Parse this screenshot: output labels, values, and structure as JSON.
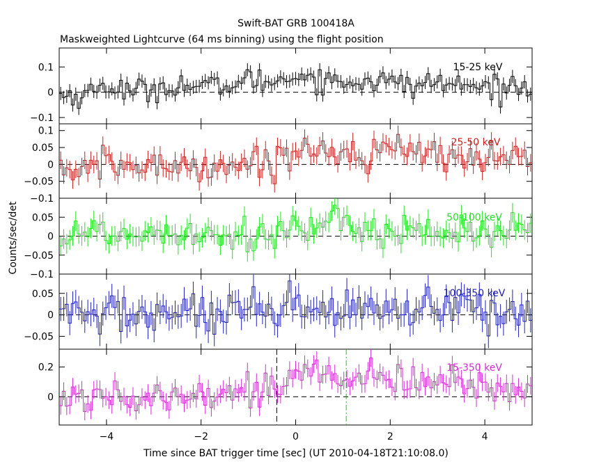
{
  "figure": {
    "title": "Swift-BAT GRB 100418A",
    "subtitle": "Maskweighted Lightcurve (64 ms binning) using the flight position",
    "xlabel": "Time since BAT trigger time [sec] (UT 2010-04-18T21:10:08.0)",
    "ylabel": "Counts/sec/det"
  },
  "chart_data": [
    {
      "type": "line",
      "band": "15-25 keV",
      "color": "#000000",
      "xlim": [
        -5,
        5
      ],
      "ylim": [
        -0.125,
        0.175
      ],
      "yticks": [
        -0.1,
        0,
        0.1
      ],
      "ytick_labels": [
        "−0.1",
        "0",
        "0.1"
      ],
      "baseline": 0,
      "error": 0.026,
      "anchors": [
        [
          -5,
          -0.01
        ],
        [
          -4.5,
          -0.015
        ],
        [
          -4,
          0.03
        ],
        [
          -3.5,
          0.0
        ],
        [
          -3,
          0.015
        ],
        [
          -2.5,
          0.03
        ],
        [
          -2,
          0.02
        ],
        [
          -1.5,
          0.025
        ],
        [
          -1,
          0.05
        ],
        [
          -0.5,
          0.04
        ],
        [
          0,
          0.07
        ],
        [
          0.5,
          0.055
        ],
        [
          1,
          0.035
        ],
        [
          1.5,
          0.05
        ],
        [
          2,
          0.04
        ],
        [
          2.5,
          0.025
        ],
        [
          3,
          0.04
        ],
        [
          3.5,
          0.025
        ],
        [
          4,
          0.02
        ],
        [
          4.5,
          0.025
        ],
        [
          5,
          0.015
        ]
      ]
    },
    {
      "type": "line",
      "band": "25-50 keV",
      "color": "#c42020",
      "xlim": [
        -5,
        5
      ],
      "ylim": [
        -0.1,
        0.12
      ],
      "yticks": [
        -0.1,
        -0.05,
        0,
        0.05,
        0.1
      ],
      "ytick_labels": [
        "−0.1",
        "−0.05",
        "0",
        "0.05",
        "0.1"
      ],
      "baseline": 0,
      "error": 0.026,
      "anchors": [
        [
          -5,
          -0.01
        ],
        [
          -4.5,
          -0.02
        ],
        [
          -4,
          0.0
        ],
        [
          -3.5,
          -0.005
        ],
        [
          -3,
          -0.01
        ],
        [
          -2.5,
          0.0
        ],
        [
          -2,
          -0.005
        ],
        [
          -1.5,
          0.0
        ],
        [
          -1,
          0.0
        ],
        [
          -0.5,
          0.01
        ],
        [
          0,
          0.04
        ],
        [
          0.5,
          0.05
        ],
        [
          1,
          0.035
        ],
        [
          1.5,
          0.03
        ],
        [
          2,
          0.05
        ],
        [
          2.5,
          0.03
        ],
        [
          3,
          0.03
        ],
        [
          3.5,
          0.025
        ],
        [
          4,
          0.02
        ],
        [
          4.5,
          0.02
        ],
        [
          5,
          0.02
        ]
      ]
    },
    {
      "type": "line",
      "band": "50-100 keV",
      "color": "#22e022",
      "xlim": [
        -5,
        5
      ],
      "ylim": [
        -0.1,
        0.1
      ],
      "yticks": [
        -0.1,
        -0.05,
        0,
        0.05
      ],
      "ytick_labels": [
        "−0.1",
        "−0.05",
        "0",
        "0.05"
      ],
      "baseline": 0,
      "error": 0.026,
      "anchors": [
        [
          -5,
          0.0
        ],
        [
          -4.5,
          0.01
        ],
        [
          -4,
          0.01
        ],
        [
          -3.5,
          0.005
        ],
        [
          -3,
          0.01
        ],
        [
          -2.5,
          0.02
        ],
        [
          -2,
          0.01
        ],
        [
          -1.5,
          0.005
        ],
        [
          -1,
          0.005
        ],
        [
          -0.5,
          0.01
        ],
        [
          0,
          0.02
        ],
        [
          0.5,
          0.025
        ],
        [
          1,
          0.02
        ],
        [
          1.5,
          0.03
        ],
        [
          2,
          0.015
        ],
        [
          2.5,
          0.02
        ],
        [
          3,
          0.01
        ],
        [
          3.5,
          0.015
        ],
        [
          4,
          0.01
        ],
        [
          4.5,
          0.01
        ],
        [
          5,
          0.01
        ]
      ]
    },
    {
      "type": "line",
      "band": "100-350 keV",
      "color": "#2020b8",
      "xlim": [
        -5,
        5
      ],
      "ylim": [
        -0.08,
        0.095
      ],
      "yticks": [
        -0.05,
        0,
        0.05
      ],
      "ytick_labels": [
        "−0.05",
        "0",
        "0.05"
      ],
      "baseline": 0,
      "error": 0.028,
      "anchors": [
        [
          -5,
          0.0
        ],
        [
          -4.5,
          0.005
        ],
        [
          -4,
          0.0
        ],
        [
          -3.5,
          0.005
        ],
        [
          -3,
          0.0
        ],
        [
          -2.5,
          0.005
        ],
        [
          -2,
          0.0
        ],
        [
          -1.5,
          -0.005
        ],
        [
          -1,
          0.0
        ],
        [
          -0.5,
          0.005
        ],
        [
          0,
          0.01
        ],
        [
          0.5,
          0.01
        ],
        [
          1,
          0.005
        ],
        [
          1.5,
          0.01
        ],
        [
          2,
          0.005
        ],
        [
          2.5,
          0.005
        ],
        [
          3,
          0.005
        ],
        [
          3.5,
          0.01
        ],
        [
          4,
          0.01
        ],
        [
          4.5,
          0.005
        ],
        [
          5,
          0.0
        ]
      ]
    },
    {
      "type": "line",
      "band": "15-350 keV",
      "color": "#d22cd2",
      "xlim": [
        -5,
        5
      ],
      "ylim": [
        -0.19,
        0.32
      ],
      "yticks": [
        0,
        0.2
      ],
      "ytick_labels": [
        "0",
        "0.2"
      ],
      "baseline": 0,
      "error": 0.06,
      "markers": [
        {
          "x": -0.4,
          "color": "#000000"
        },
        {
          "x": 1.07,
          "color": "#22c022"
        }
      ],
      "anchors": [
        [
          -5,
          -0.02
        ],
        [
          -4.5,
          -0.01
        ],
        [
          -4,
          0.02
        ],
        [
          -3.5,
          0.0
        ],
        [
          -3,
          0.02
        ],
        [
          -2.5,
          0.04
        ],
        [
          -2,
          0.03
        ],
        [
          -1.5,
          0.02
        ],
        [
          -1,
          0.04
        ],
        [
          -0.5,
          0.05
        ],
        [
          0,
          0.15
        ],
        [
          0.5,
          0.16
        ],
        [
          1,
          0.11
        ],
        [
          1.5,
          0.12
        ],
        [
          2,
          0.12
        ],
        [
          2.5,
          0.09
        ],
        [
          3,
          0.09
        ],
        [
          3.5,
          0.08
        ],
        [
          4,
          0.07
        ],
        [
          4.5,
          0.07
        ],
        [
          5,
          0.06
        ]
      ]
    }
  ],
  "xaxis": {
    "ticks": [
      -4,
      -2,
      0,
      2,
      4
    ],
    "tick_labels": [
      "−4",
      "−2",
      "0",
      "2",
      "4"
    ]
  }
}
